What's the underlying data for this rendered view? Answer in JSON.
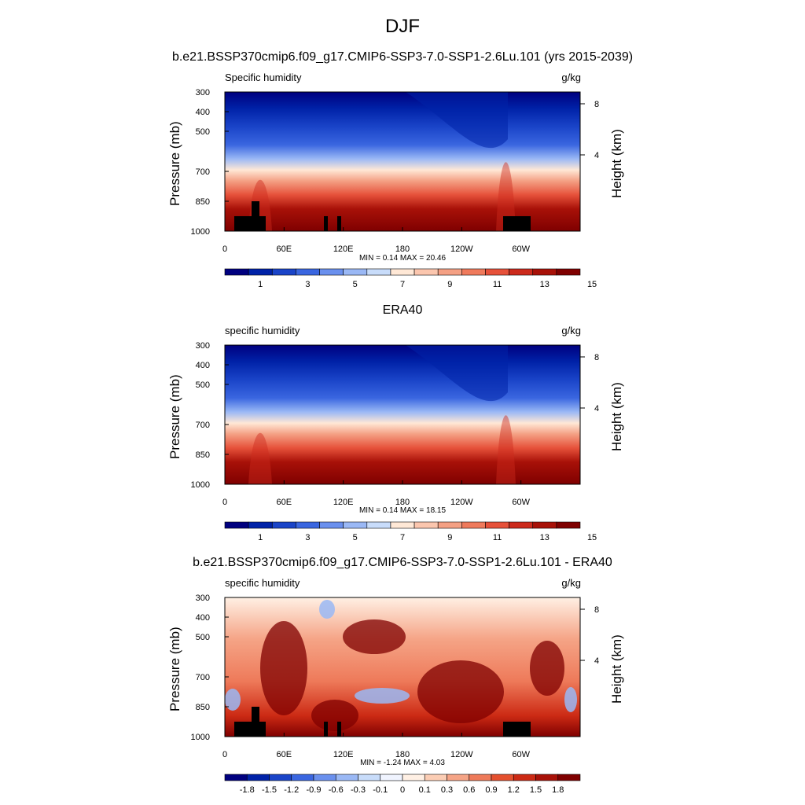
{
  "main_title": "DJF",
  "chart_data": [
    {
      "type": "heatmap",
      "title": "b.e21.BSSP370cmip6.f09_g17.CMIP6-SSP3-7.0-SSP1-2.6Lu.101 (yrs 2015-2039)",
      "variable_label": "Specific humidity",
      "units": "g/kg",
      "ylabel": "Pressure (mb)",
      "ylabel_right": "Height (km)",
      "x_ticks": [
        "0",
        "60E",
        "120E",
        "180",
        "120W",
        "60W"
      ],
      "y_ticks": [
        "300",
        "400",
        "500",
        "700",
        "850",
        "1000"
      ],
      "y_ticks_right": [
        "8",
        "4"
      ],
      "min_max_label": "MIN =   0.14  MAX =  20.46",
      "min": 0.14,
      "max": 20.46,
      "colorbar_labels": [
        "1",
        "3",
        "5",
        "7",
        "9",
        "11",
        "13",
        "15"
      ],
      "colorbar_colors": [
        "#00007f",
        "#0022a8",
        "#1a44c8",
        "#3a66e0",
        "#6a90ee",
        "#9ab8f5",
        "#c8dcfa",
        "#ffe8d6",
        "#fbc6ae",
        "#f4a084",
        "#ef7a5c",
        "#e6513a",
        "#cc2a1c",
        "#a81108",
        "#7f0000"
      ],
      "has_terrain_mask": true
    },
    {
      "type": "heatmap",
      "title": "ERA40",
      "variable_label": "specific humidity",
      "units": "g/kg",
      "ylabel": "Pressure (mb)",
      "ylabel_right": "Height (km)",
      "x_ticks": [
        "0",
        "60E",
        "120E",
        "180",
        "120W",
        "60W"
      ],
      "y_ticks": [
        "300",
        "400",
        "500",
        "700",
        "850",
        "1000"
      ],
      "y_ticks_right": [
        "8",
        "4"
      ],
      "min_max_label": "MIN =   0.14  MAX =  18.15",
      "min": 0.14,
      "max": 18.15,
      "colorbar_labels": [
        "1",
        "3",
        "5",
        "7",
        "9",
        "11",
        "13",
        "15"
      ],
      "colorbar_colors": [
        "#00007f",
        "#0022a8",
        "#1a44c8",
        "#3a66e0",
        "#6a90ee",
        "#9ab8f5",
        "#c8dcfa",
        "#ffe8d6",
        "#fbc6ae",
        "#f4a084",
        "#ef7a5c",
        "#e6513a",
        "#cc2a1c",
        "#a81108",
        "#7f0000"
      ],
      "has_terrain_mask": false
    },
    {
      "type": "heatmap",
      "title": "b.e21.BSSP370cmip6.f09_g17.CMIP6-SSP3-7.0-SSP1-2.6Lu.101 - ERA40",
      "variable_label": "specific humidity",
      "units": "g/kg",
      "ylabel": "Pressure (mb)",
      "ylabel_right": "Height (km)",
      "x_ticks": [
        "0",
        "60E",
        "120E",
        "180",
        "120W",
        "60W"
      ],
      "y_ticks": [
        "300",
        "400",
        "500",
        "700",
        "850",
        "1000"
      ],
      "y_ticks_right": [
        "8",
        "4"
      ],
      "min_max_label": "MIN =  -1.24  MAX =   4.03",
      "min": -1.24,
      "max": 4.03,
      "colorbar_labels": [
        "-1.8",
        "-1.5",
        "-1.2",
        "-0.9",
        "-0.6",
        "-0.3",
        "-0.1",
        "0",
        "0.1",
        "0.3",
        "0.6",
        "0.9",
        "1.2",
        "1.5",
        "1.8"
      ],
      "colorbar_colors": [
        "#00007f",
        "#0022a8",
        "#1a44c8",
        "#3a66e0",
        "#6a90ee",
        "#9ab8f5",
        "#c8dcfa",
        "#f0f4ff",
        "#fff0e4",
        "#fbcdb4",
        "#f5a486",
        "#ee7a5a",
        "#e4502e",
        "#cc2a14",
        "#a81108",
        "#7f0000"
      ],
      "has_terrain_mask": true
    }
  ]
}
